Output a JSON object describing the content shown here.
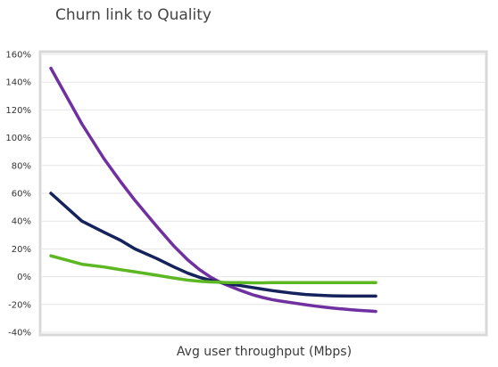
{
  "chart_data": {
    "type": "line",
    "title": "Churn link to Quality",
    "xlabel": "Avg user throughput (Mbps)",
    "ylabel": "",
    "ylim": [
      -40,
      160
    ],
    "y_tick_labels": [
      "160%",
      "140%",
      "120%",
      "100%",
      "80%",
      "60%",
      "40%",
      "20%",
      "0%",
      "-20%",
      "-40%"
    ],
    "grid": true,
    "legend": "none",
    "x": [
      1,
      1.5,
      2,
      2.5,
      3,
      4,
      5,
      6,
      7,
      8,
      9,
      10,
      12,
      14,
      16,
      18,
      20,
      24,
      28,
      32,
      36,
      40,
      45,
      50,
      55,
      60,
      65,
      70
    ],
    "series": [
      {
        "color": "#7030a0",
        "values": [
          150,
          110,
          85,
          68,
          55,
          36,
          22,
          12,
          5,
          0,
          -3.5,
          -6,
          -10,
          -13,
          -15,
          -16.5,
          -17.5,
          -19,
          -20.2,
          -21.2,
          -22,
          -22.6,
          -23.2,
          -23.7,
          -24.1,
          -24.4,
          -24.7,
          -25
        ]
      },
      {
        "color": "#16225c",
        "values": [
          60,
          40,
          32,
          26,
          20,
          13,
          7,
          2.5,
          -0.5,
          -2.5,
          -4,
          -5,
          -6.5,
          -7.8,
          -9,
          -10,
          -10.8,
          -12,
          -12.8,
          -13.3,
          -13.6,
          -13.8,
          -13.9,
          -14,
          -14,
          -14,
          -14,
          -14
        ]
      },
      {
        "color": "#5cb722",
        "values": [
          15,
          9,
          7,
          5,
          3.5,
          1,
          -1,
          -2.5,
          -3.3,
          -3.8,
          -4,
          -4.2,
          -4.3,
          -4.4,
          -4.4,
          -4.3,
          -4.3,
          -4.2,
          -4.2,
          -4.2,
          -4.2,
          -4.2,
          -4.2,
          -4.2,
          -4.2,
          -4.2,
          -4.2,
          -4.2
        ]
      }
    ]
  }
}
